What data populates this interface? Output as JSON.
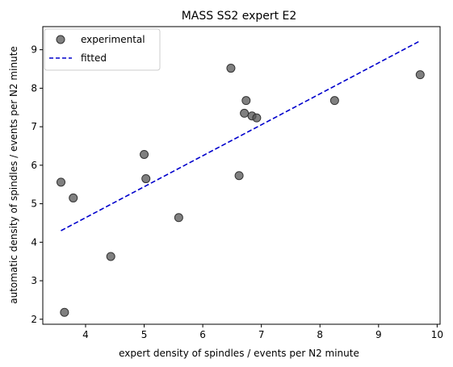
{
  "chart_data": {
    "type": "scatter",
    "title": "MASS SS2 expert E2",
    "xlabel": "expert density of spindles / events per N2 minute",
    "ylabel": "automatic density of spindles / events per N2 minute",
    "xlim": [
      3.27,
      10.05
    ],
    "ylim": [
      1.87,
      9.6
    ],
    "xticks": [
      4,
      5,
      6,
      7,
      8,
      9,
      10
    ],
    "yticks": [
      2,
      3,
      4,
      5,
      6,
      7,
      8,
      9
    ],
    "grid": false,
    "legend_position": "top-left",
    "series": [
      {
        "name": "experimental",
        "kind": "points",
        "color": "#555555",
        "x": [
          3.58,
          3.64,
          3.79,
          4.43,
          5.0,
          5.03,
          5.59,
          6.48,
          6.62,
          6.71,
          6.74,
          6.84,
          6.92,
          8.25,
          9.71
        ],
        "y": [
          5.56,
          2.18,
          5.15,
          3.63,
          6.28,
          5.65,
          4.64,
          8.52,
          5.73,
          7.35,
          7.68,
          7.28,
          7.23,
          7.68,
          8.35
        ]
      },
      {
        "name": "fitted",
        "kind": "line",
        "style": "dashed",
        "color": "#0000cc",
        "x": [
          3.58,
          9.71
        ],
        "y": [
          4.3,
          9.23
        ]
      }
    ]
  }
}
